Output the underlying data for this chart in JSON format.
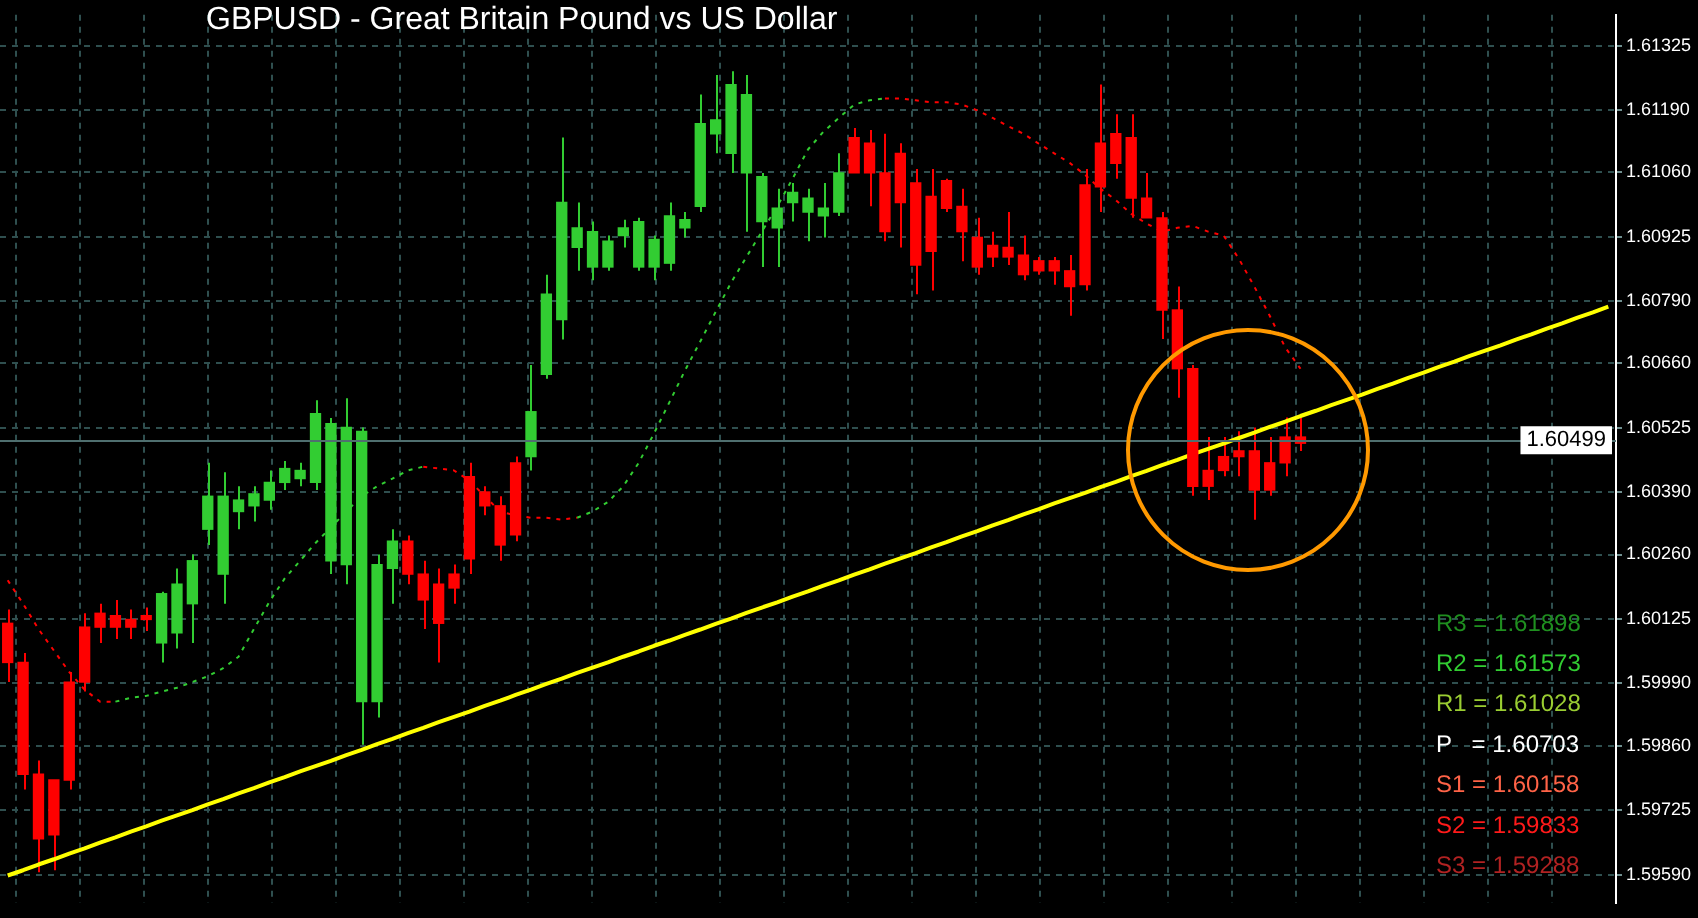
{
  "chart_data": {
    "type": "candlestick",
    "title": "GBPUSD - Great Britain Pound vs US Dollar",
    "categories": [
      null,
      null,
      null,
      null,
      null,
      null,
      null,
      null,
      null,
      null,
      null,
      null,
      null,
      null,
      null,
      null,
      null,
      null,
      null,
      null,
      null,
      null,
      null,
      null,
      null,
      null,
      null,
      null,
      null,
      null,
      null,
      null,
      null,
      null,
      null,
      null,
      null,
      null,
      null,
      null,
      null,
      null,
      null,
      null,
      null,
      null,
      null,
      null,
      null,
      null,
      null,
      null,
      null,
      null,
      null,
      null,
      null,
      null,
      null,
      null,
      null,
      null,
      null,
      null,
      null,
      null,
      null,
      null,
      null,
      null,
      null,
      null,
      null,
      null,
      null,
      null,
      null,
      null,
      null,
      null,
      null,
      null,
      null,
      null,
      null,
      null,
      null,
      null,
      null,
      null,
      null,
      null,
      null,
      null,
      null,
      null,
      null,
      null,
      null,
      null,
      null,
      null,
      null,
      null,
      null
    ],
    "ohlc": [
      [
        1.60116,
        1.60145,
        1.59993,
        1.60034
      ],
      [
        1.60034,
        1.60054,
        1.59768,
        1.598
      ],
      [
        1.598,
        1.59829,
        1.59595,
        1.59665
      ],
      [
        1.59788,
        1.59788,
        1.59599,
        1.59673
      ],
      [
        1.59993,
        1.60014,
        1.59768,
        1.59788
      ],
      [
        1.60108,
        1.60137,
        1.59973,
        1.59993
      ],
      [
        1.60137,
        1.60157,
        1.60075,
        1.60108
      ],
      [
        1.60132,
        1.60165,
        1.60083,
        1.60108
      ],
      [
        1.60124,
        1.60145,
        1.60083,
        1.60108
      ],
      [
        1.60132,
        1.60149,
        1.601,
        1.60124
      ],
      [
        1.60075,
        1.60182,
        1.60034,
        1.60178
      ],
      [
        1.60096,
        1.60231,
        1.60063,
        1.60198
      ],
      [
        1.60157,
        1.6026,
        1.60075,
        1.60247
      ],
      [
        1.60313,
        1.60452,
        1.6028,
        1.60382
      ],
      [
        1.60219,
        1.60432,
        1.60157,
        1.60382
      ],
      [
        1.6035,
        1.60403,
        1.60313,
        1.60374
      ],
      [
        1.60362,
        1.60403,
        1.60329,
        1.60387
      ],
      [
        1.60374,
        1.60436,
        1.60354,
        1.60411
      ],
      [
        1.60411,
        1.60456,
        1.60395,
        1.6044
      ],
      [
        1.60419,
        1.60452,
        1.60403,
        1.60436
      ],
      [
        1.60411,
        1.60583,
        1.60395,
        1.60555
      ],
      [
        1.60247,
        1.60546,
        1.60219,
        1.60534
      ],
      [
        1.60239,
        1.60587,
        1.60198,
        1.60526
      ],
      [
        1.59952,
        1.60526,
        1.59862,
        1.60518
      ],
      [
        1.59952,
        1.6026,
        1.59919,
        1.60239
      ],
      [
        1.60231,
        1.60313,
        1.60157,
        1.60288
      ],
      [
        1.60288,
        1.603,
        1.60198,
        1.60219
      ],
      [
        1.60219,
        1.60247,
        1.60104,
        1.60165
      ],
      [
        1.60198,
        1.60231,
        1.60034,
        1.60116
      ],
      [
        1.60219,
        1.60239,
        1.60157,
        1.6019
      ],
      [
        1.60423,
        1.60452,
        1.60219,
        1.60251
      ],
      [
        1.60391,
        1.60403,
        1.60342,
        1.60362
      ],
      [
        1.60362,
        1.60382,
        1.60247,
        1.6028
      ],
      [
        1.60452,
        1.60465,
        1.60288,
        1.60301
      ],
      [
        1.60465,
        1.60657,
        1.60436,
        1.60559
      ],
      [
        1.60637,
        1.60846,
        1.60628,
        1.60805
      ],
      [
        1.60752,
        1.61133,
        1.6071,
        1.60997
      ],
      [
        1.60903,
        1.60997,
        1.60854,
        1.60944
      ],
      [
        1.60862,
        1.60957,
        1.60834,
        1.60936
      ],
      [
        1.60862,
        1.60928,
        1.60854,
        1.60916
      ],
      [
        1.60928,
        1.60961,
        1.60903,
        1.60944
      ],
      [
        1.60862,
        1.60965,
        1.60854,
        1.60957
      ],
      [
        1.60862,
        1.60928,
        1.60834,
        1.6092
      ],
      [
        1.6087,
        1.60997,
        1.60854,
        1.60969
      ],
      [
        1.60944,
        1.60977,
        1.60924,
        1.60961
      ],
      [
        1.60989,
        1.61223,
        1.60977,
        1.61162
      ],
      [
        1.61141,
        1.61264,
        1.611,
        1.6117
      ],
      [
        1.611,
        1.61272,
        1.61059,
        1.61244
      ],
      [
        1.61059,
        1.61264,
        1.60936,
        1.61223
      ],
      [
        1.60957,
        1.61059,
        1.60862,
        1.61051
      ],
      [
        1.60944,
        1.61026,
        1.60862,
        1.60985
      ],
      [
        1.60997,
        1.61038,
        1.60957,
        1.61018
      ],
      [
        1.60977,
        1.61026,
        1.60916,
        1.61006
      ],
      [
        1.60969,
        1.61038,
        1.60924,
        1.60985
      ],
      [
        1.60977,
        1.611,
        1.60969,
        1.61059
      ],
      [
        1.61133,
        1.61153,
        1.61059,
        1.61059
      ],
      [
        1.61121,
        1.61149,
        1.60989,
        1.61059
      ],
      [
        1.61059,
        1.61141,
        1.60916,
        1.60936
      ],
      [
        1.611,
        1.61121,
        1.60903,
        1.60997
      ],
      [
        1.61038,
        1.61067,
        1.60805,
        1.60866
      ],
      [
        1.6101,
        1.61067,
        1.60813,
        1.60895
      ],
      [
        1.61043,
        1.61047,
        1.60977,
        1.60985
      ],
      [
        1.60989,
        1.61026,
        1.60874,
        1.60936
      ],
      [
        1.60924,
        1.60965,
        1.60846,
        1.60862
      ],
      [
        1.60907,
        1.60936,
        1.60862,
        1.60883
      ],
      [
        1.60903,
        1.60977,
        1.60866,
        1.60883
      ],
      [
        1.60887,
        1.60928,
        1.60834,
        1.60846
      ],
      [
        1.60875,
        1.60883,
        1.60846,
        1.60854
      ],
      [
        1.60875,
        1.60883,
        1.60825,
        1.60854
      ],
      [
        1.60854,
        1.60887,
        1.6076,
        1.60821
      ],
      [
        1.61034,
        1.61067,
        1.60813,
        1.60825
      ],
      [
        1.61121,
        1.61244,
        1.60977,
        1.6103
      ],
      [
        1.61141,
        1.61182,
        1.61047,
        1.61079
      ],
      [
        1.61133,
        1.61182,
        1.60965,
        1.61006
      ],
      [
        1.61006,
        1.61059,
        1.60965,
        1.60965
      ],
      [
        1.60965,
        1.60977,
        1.60711,
        1.60772
      ],
      [
        1.60772,
        1.60821,
        1.60588,
        1.60649
      ],
      [
        1.60649,
        1.60657,
        1.60383,
        1.60403
      ],
      [
        1.60436,
        1.60506,
        1.60374,
        1.60403
      ],
      [
        1.60465,
        1.60506,
        1.60424,
        1.60436
      ],
      [
        1.60477,
        1.60518,
        1.60424,
        1.60465
      ],
      [
        1.60477,
        1.60526,
        1.60333,
        1.60395
      ],
      [
        1.60452,
        1.60506,
        1.60383,
        1.60395
      ],
      [
        1.60506,
        1.60547,
        1.60424,
        1.60452
      ],
      [
        1.60506,
        1.60547,
        1.60477,
        1.60493
      ],
      null,
      null,
      null,
      null,
      null,
      null,
      null,
      null,
      null,
      null,
      null,
      null,
      null,
      null,
      null,
      null,
      null,
      null,
      null,
      null
    ],
    "colors": [
      "#ff0000",
      "#ff0000",
      "#ff0000",
      "#ff0000",
      "#ff0000",
      "#ff0000",
      "#ff0000",
      "#ff0000",
      "#ff0000",
      "#ff0000",
      "#32cd32",
      "#32cd32",
      "#32cd32",
      "#32cd32",
      "#32cd32",
      "#32cd32",
      "#32cd32",
      "#32cd32",
      "#32cd32",
      "#32cd32",
      "#32cd32",
      "#32cd32",
      "#32cd32",
      "#32cd32",
      "#32cd32",
      "#32cd32",
      "#ff0000",
      "#ff0000",
      "#ff0000",
      "#ff0000",
      "#ff0000",
      "#ff0000",
      "#ff0000",
      "#ff0000",
      "#32cd32",
      "#32cd32",
      "#32cd32",
      "#32cd32",
      "#32cd32",
      "#32cd32",
      "#32cd32",
      "#32cd32",
      "#32cd32",
      "#32cd32",
      "#32cd32",
      "#32cd32",
      "#32cd32",
      "#32cd32",
      "#32cd32",
      "#32cd32",
      "#32cd32",
      "#32cd32",
      "#32cd32",
      "#32cd32",
      "#32cd32",
      "#ff0000",
      "#ff0000",
      "#ff0000",
      "#ff0000",
      "#ff0000",
      "#ff0000",
      "#ff0000",
      "#ff0000",
      "#ff0000",
      "#ff0000",
      "#ff0000",
      "#ff0000",
      "#ff0000",
      "#ff0000",
      "#ff0000",
      "#ff0000",
      "#ff0000",
      "#ff0000",
      "#ff0000",
      "#ff0000",
      "#ff0000",
      "#ff0000",
      "#ff0000",
      "#ff0000",
      "#ff0000",
      "#ff0000",
      "#ff0000",
      "#ff0000",
      "#ff0000",
      "#ff0000",
      null,
      null,
      null,
      null,
      null,
      null,
      null,
      null,
      null,
      null,
      null,
      null,
      null,
      null,
      null,
      null,
      null,
      null,
      null,
      null
    ],
    "series": [
      {
        "type": "line",
        "color": "#ff0000",
        "line_style": "dashed",
        "values": [
          1.60206,
          1.60157,
          1.60104,
          1.60059,
          1.60014,
          1.59977,
          1.59952,
          1.59952,
          null,
          null,
          null,
          null,
          null,
          null,
          null,
          null,
          null,
          null,
          null,
          null,
          null,
          null,
          null,
          null,
          null,
          null,
          null,
          1.60444,
          1.6044,
          1.60436,
          1.60415,
          1.60382,
          1.6035,
          1.60342,
          1.60337,
          1.60337,
          1.60333,
          1.60337,
          null,
          null,
          null,
          null,
          null,
          null,
          null,
          null,
          null,
          null,
          null,
          null,
          null,
          null,
          null,
          null,
          null,
          null,
          null,
          1.61215,
          1.61215,
          1.61211,
          1.61207,
          1.61207,
          1.61202,
          1.6119,
          1.61174,
          1.61157,
          1.61141,
          1.6112,
          1.611,
          1.6108,
          1.61055,
          1.61026,
          1.61002,
          1.60973,
          1.60953,
          1.60936,
          1.60944,
          1.60948,
          1.60936,
          1.60928,
          1.60879,
          1.60821,
          1.6076,
          1.60694,
          1.60649,
          null,
          null,
          null,
          null,
          null,
          null,
          null,
          null,
          null,
          null,
          null,
          null,
          null,
          null,
          null,
          null,
          null,
          null,
          null,
          null
        ]
      },
      {
        "type": "line",
        "color": "#32cd32",
        "line_style": "dashed",
        "values": [
          null,
          null,
          null,
          null,
          null,
          null,
          null,
          1.59952,
          1.5996,
          1.59964,
          1.59973,
          1.59981,
          1.59993,
          1.60005,
          1.60022,
          1.60046,
          1.60104,
          1.60161,
          1.6021,
          1.60247,
          1.60284,
          1.60317,
          1.6035,
          1.60382,
          1.60403,
          1.60419,
          1.60436,
          1.60444,
          null,
          null,
          null,
          null,
          null,
          null,
          null,
          null,
          null,
          1.60337,
          1.6035,
          1.6037,
          1.60403,
          1.60452,
          1.60514,
          1.60579,
          1.60645,
          1.60706,
          1.60768,
          1.60829,
          1.60883,
          1.60936,
          1.60989,
          1.61047,
          1.61108,
          1.61145,
          1.61174,
          1.61202,
          1.61211,
          1.61215,
          null,
          null,
          null,
          null,
          null,
          null,
          null,
          null,
          null,
          null,
          null,
          null,
          null,
          null,
          null,
          null,
          null,
          null,
          null,
          null,
          null,
          null,
          null,
          null,
          null,
          null,
          null,
          null,
          null,
          null,
          null,
          null,
          null,
          null,
          null,
          null,
          null,
          null,
          null,
          null,
          null,
          null,
          null,
          null,
          null,
          null,
          null
        ]
      },
      {
        "type": "line",
        "color": "#ffff00",
        "line_style": "solid",
        "values": [
          1.59588,
          1.59599,
          1.59611,
          1.59622,
          1.59634,
          1.59645,
          1.59657,
          1.59668,
          1.5968,
          1.59691,
          1.59703,
          1.59714,
          1.59725,
          1.59737,
          1.59748,
          1.5976,
          1.59771,
          1.59783,
          1.59794,
          1.59806,
          1.59817,
          1.59828,
          1.5984,
          1.59851,
          1.59863,
          1.59874,
          1.59886,
          1.59897,
          1.59909,
          1.5992,
          1.59931,
          1.59943,
          1.59954,
          1.59966,
          1.59977,
          1.59989,
          1.6,
          1.60012,
          1.60023,
          1.60034,
          1.60046,
          1.60057,
          1.60069,
          1.6008,
          1.60092,
          1.60103,
          1.60115,
          1.60126,
          1.60138,
          1.60149,
          1.6016,
          1.60172,
          1.60183,
          1.60195,
          1.60206,
          1.60218,
          1.60229,
          1.60241,
          1.60252,
          1.60263,
          1.60275,
          1.60286,
          1.60298,
          1.60309,
          1.60321,
          1.60332,
          1.60344,
          1.60355,
          1.60367,
          1.60378,
          1.60389,
          1.60401,
          1.60412,
          1.60424,
          1.60435,
          1.60447,
          1.60458,
          1.6047,
          1.60481,
          1.60492,
          1.60504,
          1.60515,
          1.60527,
          1.60538,
          1.6055,
          1.60561,
          1.60573,
          1.60584,
          1.60595,
          1.60607,
          1.60618,
          1.6063,
          1.60641,
          1.60653,
          1.60664,
          1.60676,
          1.60687,
          1.60698,
          1.6071,
          1.60721,
          1.60733,
          1.60744,
          1.60756,
          1.60767,
          1.60779
        ]
      }
    ],
    "ylim": [
      1.5953,
      1.6139
    ],
    "yticks": [
      {
        "value": 1.5959,
        "label": "1.59590"
      },
      {
        "value": 1.59725,
        "label": "1.59725"
      },
      {
        "value": 1.5986,
        "label": "1.59860"
      },
      {
        "value": 1.5999,
        "label": "1.59990"
      },
      {
        "value": 1.60125,
        "label": "1.60125"
      },
      {
        "value": 1.6026,
        "label": "1.60260"
      },
      {
        "value": 1.6039,
        "label": "1.60390"
      },
      {
        "value": 1.60525,
        "label": "1.60525"
      },
      {
        "value": 1.6066,
        "label": "1.60660"
      },
      {
        "value": 1.6079,
        "label": "1.60790"
      },
      {
        "value": 1.60925,
        "label": "1.60925"
      },
      {
        "value": 1.6106,
        "label": "1.61060"
      },
      {
        "value": 1.6119,
        "label": "1.61190"
      },
      {
        "value": 1.61325,
        "label": "1.61325"
      }
    ],
    "ref_lines": [
      {
        "axis": "y",
        "value": 1.60499,
        "label": "1.60499",
        "color": "#4f6f6f"
      }
    ],
    "annotations": [
      "R3 = 1.61898",
      "R2 = 1.61573",
      "R1 = 1.61028",
      "P   = 1.60703",
      "S1 = 1.60158",
      "S2 = 1.59833",
      "S3 = 1.59288"
    ],
    "tick_labels": "y",
    "grid": true,
    "marker": "none"
  }
}
